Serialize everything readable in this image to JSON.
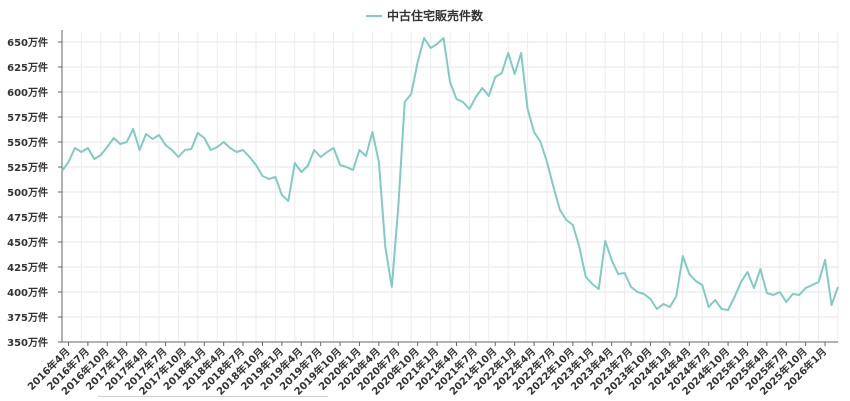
{
  "legend": {
    "series_name": "中古住宅販売件数",
    "color": "#80cbc4"
  },
  "chart_data": {
    "type": "line",
    "title": "",
    "xlabel": "",
    "ylabel": "",
    "y_unit_suffix": "万件",
    "ylim": [
      350,
      660
    ],
    "y_ticks": [
      350,
      375,
      400,
      425,
      450,
      475,
      500,
      525,
      550,
      575,
      600,
      625,
      650
    ],
    "grid": true,
    "legend_position": "top-center",
    "x_tick_labels": [
      "2016年4月",
      "2016年7月",
      "2016年10月",
      "2017年1月",
      "2017年4月",
      "2017年7月",
      "2017年10月",
      "2018年1月",
      "2018年4月",
      "2018年7月",
      "2018年10月",
      "2019年1月",
      "2019年4月",
      "2019年7月",
      "2019年10月",
      "2020年1月",
      "2020年4月",
      "2020年7月",
      "2020年10月",
      "2021年1月",
      "2021年4月",
      "2021年7月",
      "2021年10月",
      "2022年1月",
      "2022年4月",
      "2022年7月",
      "2022年10月",
      "2023年1月",
      "2023年4月",
      "2023年7月",
      "2023年10月",
      "2024年1月",
      "2024年4月",
      "2024年7月",
      "2024年10月",
      "2025年1月",
      "2025年4月",
      "2025年7月",
      "2025年10月",
      "2026年1月"
    ],
    "series": [
      {
        "name": "中古住宅販売件数",
        "color": "#80cbc4",
        "values": [
          521,
          530,
          544,
          540,
          544,
          533,
          537,
          545,
          554,
          548,
          550,
          563,
          542,
          558,
          553,
          557,
          547,
          542,
          535,
          542,
          543,
          559,
          554,
          542,
          545,
          550,
          544,
          540,
          542,
          535,
          527,
          516,
          513,
          515,
          497,
          491,
          529,
          520,
          526,
          542,
          535,
          540,
          544,
          527,
          525,
          522,
          542,
          536,
          560,
          530,
          445,
          405,
          485,
          590,
          598,
          630,
          654,
          644,
          648,
          654,
          610,
          593,
          590,
          583,
          595,
          604,
          596,
          615,
          619,
          639,
          618,
          639,
          583,
          560,
          550,
          530,
          505,
          482,
          472,
          467,
          445,
          415,
          408,
          403,
          451,
          432,
          418,
          419,
          405,
          400,
          398,
          393,
          383,
          388,
          385,
          396,
          436,
          418,
          411,
          407,
          385,
          392,
          383,
          382,
          395,
          410,
          420,
          404,
          423,
          399,
          397,
          400,
          390,
          398,
          397,
          404,
          407,
          410,
          432,
          387,
          405
        ]
      }
    ]
  }
}
